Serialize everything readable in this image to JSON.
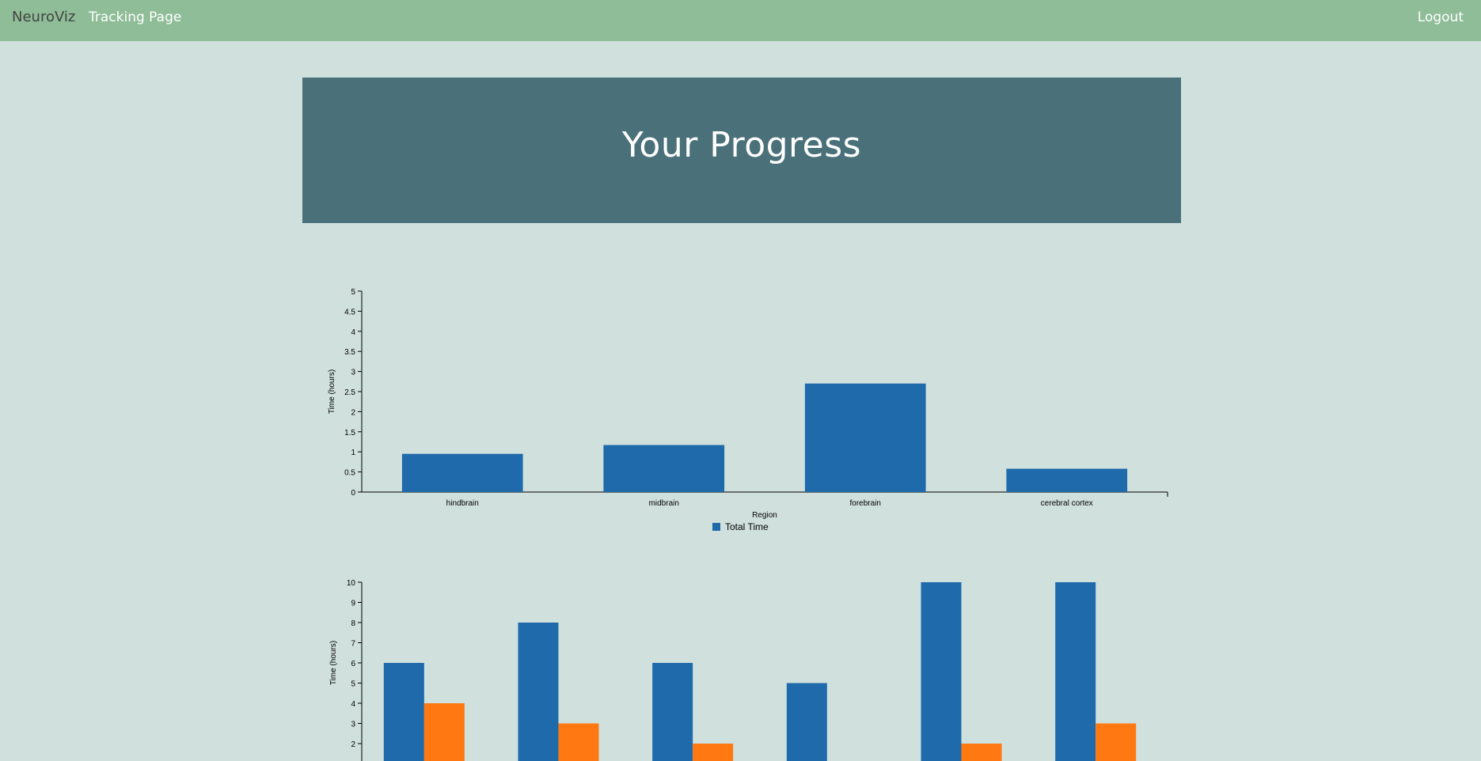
{
  "navbar": {
    "brand": "NeuroViz",
    "tracking_label": "Tracking Page",
    "logout_label": "Logout"
  },
  "hero": {
    "title": "Your Progress"
  },
  "chart_data": [
    {
      "type": "bar",
      "categories": [
        "hindbrain",
        "midbrain",
        "forebrain",
        "cerebral cortex"
      ],
      "series": [
        {
          "name": "Total Time",
          "values": [
            0.95,
            1.17,
            2.7,
            0.58
          ],
          "color": "#1f6aab"
        }
      ],
      "xlabel": "Region",
      "ylabel": "Time (hours)",
      "ylim": [
        0,
        5
      ],
      "yticks": [
        0,
        0.5,
        1,
        1.5,
        2,
        2.5,
        3,
        3.5,
        4,
        4.5,
        5
      ],
      "legend": "bottom-center"
    },
    {
      "type": "bar",
      "categories": [
        "",
        "",
        "",
        "",
        "",
        ""
      ],
      "series": [
        {
          "values": [
            6,
            8,
            6,
            5,
            10,
            10
          ],
          "color": "#1f6aab"
        },
        {
          "values": [
            4,
            3,
            2,
            0,
            2,
            3
          ],
          "color": "#ff7811"
        }
      ],
      "ylabel": "Time (hours)",
      "ylim": [
        0,
        10
      ],
      "yticks": [
        2,
        3,
        4,
        5,
        6,
        7,
        8,
        9,
        10
      ]
    }
  ]
}
